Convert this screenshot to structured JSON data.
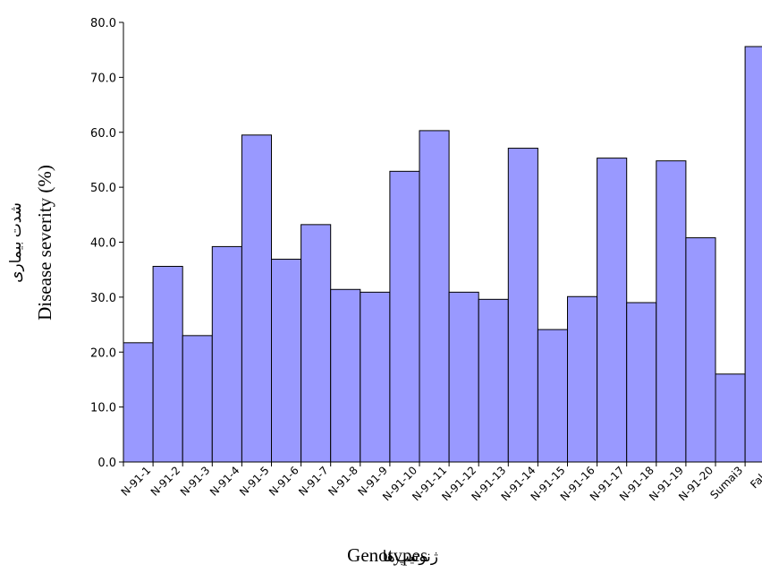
{
  "colors": {
    "bar_fill": "#9999ff",
    "bar_stroke": "#000000",
    "axis": "#000000",
    "background": "#ffffff"
  },
  "chart_data": {
    "type": "bar",
    "title": "",
    "categories": [
      "N-91-1",
      "N-91-2",
      "N-91-3",
      "N-91-4",
      "N-91-5",
      "N-91-6",
      "N-91-7",
      "N-91-8",
      "N-91-9",
      "N-91-10",
      "N-91-11",
      "N-91-12",
      "N-91-13",
      "N-91-14",
      "N-91-15",
      "N-91-16",
      "N-91-17",
      "N-91-18",
      "N-91-19",
      "N-91-20",
      "Sumai3",
      "Falat"
    ],
    "values": [
      21.7,
      35.6,
      23.0,
      39.2,
      59.5,
      36.9,
      43.2,
      31.4,
      30.9,
      52.9,
      60.3,
      30.9,
      29.6,
      57.1,
      24.1,
      30.1,
      55.3,
      29.0,
      54.8,
      40.8,
      16.0,
      75.6
    ],
    "xlabel": "Genotypes",
    "xlabel_fa": "ژنوتیپ‌ها",
    "ylabel": "Disease severity (%)",
    "ylabel_fa": "شدت بیماری",
    "ylim": [
      0,
      80
    ],
    "yticks": [
      "0.0",
      "10.0",
      "20.0",
      "30.0",
      "40.0",
      "50.0",
      "60.0",
      "70.0",
      "80.0"
    ],
    "grid": false,
    "legend": "none"
  }
}
